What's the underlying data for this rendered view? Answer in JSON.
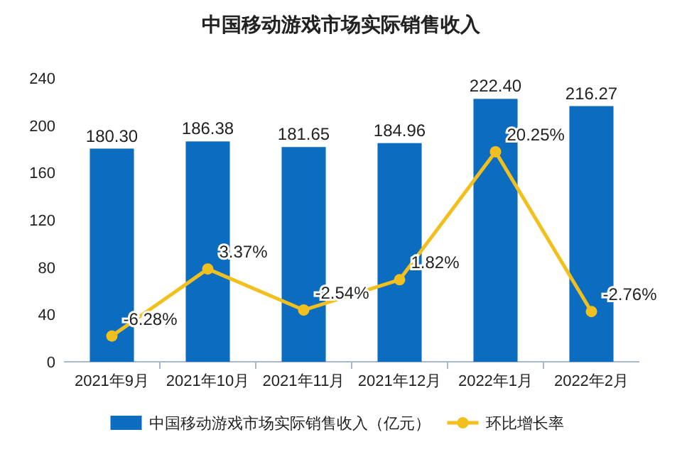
{
  "chart_data": {
    "type": "bar",
    "title": "中国移动游戏市场实际销售收入",
    "categories": [
      "2021年9月",
      "2021年10月",
      "2021年11月",
      "2021年12月",
      "2022年1月",
      "2022年2月"
    ],
    "series": [
      {
        "name": "中国移动游戏市场实际销售收入（亿元）",
        "color": "#0b6cc0",
        "values": [
          180.3,
          186.38,
          181.65,
          184.96,
          222.4,
          216.27
        ],
        "value_labels": [
          "180.30",
          "186.38",
          "181.65",
          "184.96",
          "222.40",
          "216.27"
        ]
      },
      {
        "name": "环比增长率",
        "type": "line",
        "axis": "y2",
        "color": "#f2c01e",
        "marker": "circle",
        "values": [
          -6.28,
          3.37,
          -2.54,
          1.82,
          20.25,
          -2.76
        ],
        "value_labels": [
          "-6.28%",
          "3.37%",
          "-2.54%",
          "1.82%",
          "20.25%",
          "-2.76%"
        ]
      }
    ],
    "ylim": [
      0,
      240
    ],
    "yticks": [
      0,
      40,
      80,
      120,
      160,
      200,
      240
    ],
    "grid": false,
    "legend": "bottom"
  }
}
